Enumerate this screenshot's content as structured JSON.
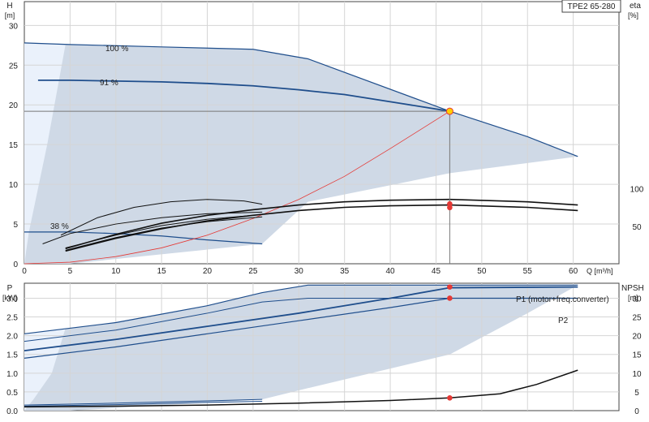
{
  "chart_data": [
    {
      "type": "line",
      "title": "TPE2 65-280",
      "ylabel": "H",
      "yunit": "[m]",
      "y2label": "eta",
      "y2unit": "[%]",
      "xlabel": "Q [m³/h]",
      "xlim": [
        0,
        65
      ],
      "ylim": [
        0,
        33
      ],
      "y2lim": [
        0,
        350
      ],
      "grid": true,
      "xticks": [
        "0",
        "5",
        "10",
        "15",
        "20",
        "25",
        "30",
        "35",
        "40",
        "45",
        "50",
        "55",
        "60"
      ],
      "yticks": [
        "0",
        "5",
        "10",
        "15",
        "20",
        "25",
        "30"
      ],
      "y2ticks": [
        "50",
        "100"
      ],
      "annotations": [
        "100 %",
        "91 %",
        "38 %"
      ],
      "duty_point": {
        "q": 46.5,
        "h": 19.2,
        "eta_values": [
          80,
          75
        ]
      },
      "series": [
        {
          "name": "100 %",
          "color": "#1f4e8c",
          "width": 1.2,
          "x": [
            0,
            5,
            15,
            25,
            31,
            46.5,
            55,
            60.5
          ],
          "y": [
            27.8,
            27.6,
            27.3,
            27.0,
            25.8,
            19.2,
            16.0,
            13.5
          ]
        },
        {
          "name": "91 %",
          "color": "#1f4e8c",
          "width": 1.8,
          "x": [
            1.5,
            5,
            10,
            15,
            20,
            25,
            30,
            35,
            40,
            46.5
          ],
          "y": [
            23.1,
            23.1,
            23.0,
            22.9,
            22.7,
            22.4,
            21.9,
            21.3,
            20.4,
            19.2
          ]
        },
        {
          "name": "38 %",
          "color": "#1f4e8c",
          "width": 1.2,
          "x": [
            0,
            5,
            10,
            15,
            20,
            26
          ],
          "y": [
            4.0,
            4.0,
            3.8,
            3.5,
            3.0,
            2.5
          ]
        },
        {
          "color": "#e53935",
          "width": 0.8,
          "x": [
            0,
            5,
            10,
            15,
            20,
            25,
            30,
            35,
            40,
            46.5
          ],
          "y": [
            0,
            0.2,
            0.9,
            2.0,
            3.6,
            5.7,
            8.1,
            11.0,
            14.5,
            19.2
          ]
        },
        {
          "color": "#111111",
          "width": 1.0,
          "x": [
            4,
            8,
            12,
            16,
            20,
            24,
            26
          ],
          "y": [
            3.6,
            5.8,
            7.1,
            7.8,
            8.1,
            7.9,
            7.5
          ]
        },
        {
          "color": "#111111",
          "width": 1.0,
          "x": [
            2,
            5,
            10,
            15,
            20,
            26
          ],
          "y": [
            2.5,
            3.8,
            5.0,
            5.8,
            6.3,
            6.5
          ]
        },
        {
          "color": "#111111",
          "width": 1.6,
          "x": [
            4.5,
            10,
            15,
            20,
            25,
            30,
            35,
            40,
            46.5,
            55,
            60.5
          ],
          "y": [
            1.6,
            3.2,
            4.4,
            5.4,
            6.1,
            6.7,
            7.1,
            7.3,
            7.4,
            7.1,
            6.7
          ]
        },
        {
          "color": "#111111",
          "width": 1.6,
          "x": [
            4.5,
            10,
            15,
            20,
            25,
            30,
            35,
            40,
            46.5,
            55,
            60.5
          ],
          "y": [
            1.9,
            3.7,
            5.1,
            6.1,
            6.8,
            7.4,
            7.8,
            8.0,
            8.1,
            7.8,
            7.4
          ]
        },
        {
          "color": "#111111",
          "width": 1.0,
          "x": [
            4.5,
            10,
            15,
            20,
            26
          ],
          "y": [
            1.7,
            3.3,
            4.5,
            5.3,
            5.9
          ]
        },
        {
          "color": "#111111",
          "width": 1.0,
          "x": [
            4.5,
            10,
            15,
            20,
            26
          ],
          "y": [
            2.0,
            3.6,
            4.8,
            5.6,
            6.2
          ]
        }
      ]
    },
    {
      "type": "line",
      "ylabel": "P",
      "yunit": "[kW]",
      "y2label": "NPSH",
      "y2unit": "[m]",
      "xlim": [
        0,
        65
      ],
      "ylim": [
        0,
        3.4
      ],
      "y2lim": [
        0,
        34
      ],
      "grid": true,
      "yticks": [
        "0.0",
        "0.5",
        "1.0",
        "1.5",
        "2.0",
        "2.5",
        "3.0"
      ],
      "y2ticks": [
        "0",
        "5",
        "10",
        "15",
        "20",
        "25",
        "30"
      ],
      "duty_point": {
        "q": 46.5,
        "p_values": [
          3.3,
          3.0
        ],
        "npsh": 3.4
      },
      "series": [
        {
          "name": "P1 (motor+freq.converter)",
          "color": "#1f4e8c",
          "width": 1.8,
          "x": [
            0,
            10,
            20,
            30,
            40,
            46.5,
            60.5
          ],
          "y": [
            1.6,
            1.9,
            2.25,
            2.6,
            3.0,
            3.28,
            3.3
          ]
        },
        {
          "color": "#1f4e8c",
          "width": 1.2,
          "x": [
            0,
            10,
            20,
            26,
            31,
            46.5,
            60.5
          ],
          "y": [
            2.05,
            2.35,
            2.8,
            3.15,
            3.35,
            3.35,
            3.35
          ]
        },
        {
          "color": "#1f4e8c",
          "width": 1.0,
          "x": [
            0,
            10,
            20,
            26,
            31,
            46.5,
            60.5
          ],
          "y": [
            1.85,
            2.15,
            2.6,
            2.9,
            3.0,
            3.0,
            3.0
          ]
        },
        {
          "name": "P2",
          "color": "#1f4e8c",
          "width": 1.2,
          "x": [
            0,
            10,
            20,
            30,
            40,
            46.5,
            60.5
          ],
          "y": [
            1.4,
            1.7,
            2.05,
            2.4,
            2.75,
            3.0,
            3.0
          ]
        },
        {
          "color": "#1f4e8c",
          "width": 1.0,
          "x": [
            0,
            10,
            20,
            26
          ],
          "y": [
            0.15,
            0.2,
            0.26,
            0.3
          ]
        },
        {
          "color": "#1f4e8c",
          "width": 1.0,
          "x": [
            0,
            10,
            20,
            26
          ],
          "y": [
            0.12,
            0.16,
            0.22,
            0.25
          ]
        },
        {
          "color": "#111111",
          "width": 1.5,
          "x": [
            0,
            10,
            20,
            30,
            40,
            46.5,
            52,
            56,
            60.5
          ],
          "y": [
            0.1,
            0.12,
            0.15,
            0.2,
            0.27,
            0.34,
            0.45,
            0.7,
            1.08
          ]
        }
      ]
    }
  ]
}
